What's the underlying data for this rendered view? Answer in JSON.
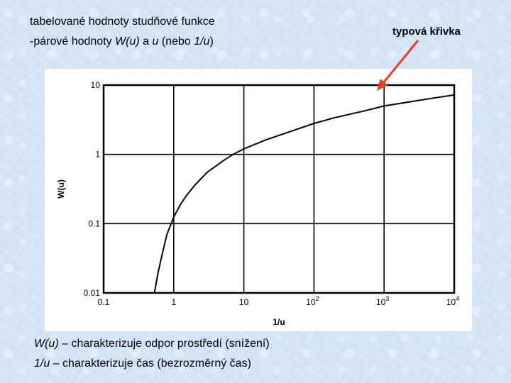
{
  "header": {
    "line1": "tabelované hodnoty studňové funkce",
    "line2_prefix": "-párové hodnoty ",
    "line2_wu": "W(u)",
    "line2_mid1": " a ",
    "line2_u": "u",
    "line2_mid2": " (nebo ",
    "line2_inv": "1/u",
    "line2_suffix": ")"
  },
  "annotation": {
    "label": "typová křivka",
    "arrow_color": "#e8401c"
  },
  "notes": {
    "line1_var": "W(u)",
    "line1_text": " – charakterizuje odpor prostředí (snížení)",
    "line2_var": "1/u",
    "line2_text": " – charakterizuje čas (bezrozměrný čas)"
  },
  "chart_data": {
    "type": "line",
    "title": "",
    "xlabel": "1/u",
    "ylabel": "W(u)",
    "x_scale": "log",
    "y_scale": "log",
    "xlim": [
      0.1,
      10000
    ],
    "ylim": [
      0.01,
      10
    ],
    "grid": true,
    "x_ticks": [
      {
        "value": 0.1,
        "base": "0.1",
        "exp": ""
      },
      {
        "value": 1,
        "base": "1",
        "exp": ""
      },
      {
        "value": 10,
        "base": "10",
        "exp": ""
      },
      {
        "value": 100,
        "base": "10",
        "exp": "2"
      },
      {
        "value": 1000,
        "base": "10",
        "exp": "3"
      },
      {
        "value": 10000,
        "base": "10",
        "exp": "4"
      }
    ],
    "y_ticks": [
      {
        "value": 0.01,
        "label": "0.01"
      },
      {
        "value": 0.1,
        "label": "0.1"
      },
      {
        "value": 1,
        "label": "1"
      },
      {
        "value": 10,
        "label": "10"
      }
    ],
    "series": [
      {
        "x": [
          0.53,
          0.6,
          0.7,
          0.8,
          1.0,
          1.25,
          1.5,
          2.0,
          3.0,
          5.0,
          7.0,
          10,
          20,
          50,
          100,
          200,
          500,
          1000,
          2000,
          5000,
          10000
        ],
        "y": [
          0.01,
          0.02,
          0.04,
          0.07,
          0.125,
          0.19,
          0.25,
          0.36,
          0.55,
          0.8,
          1.0,
          1.2,
          1.6,
          2.2,
          2.8,
          3.4,
          4.2,
          5.0,
          5.6,
          6.5,
          7.2
        ]
      }
    ]
  }
}
